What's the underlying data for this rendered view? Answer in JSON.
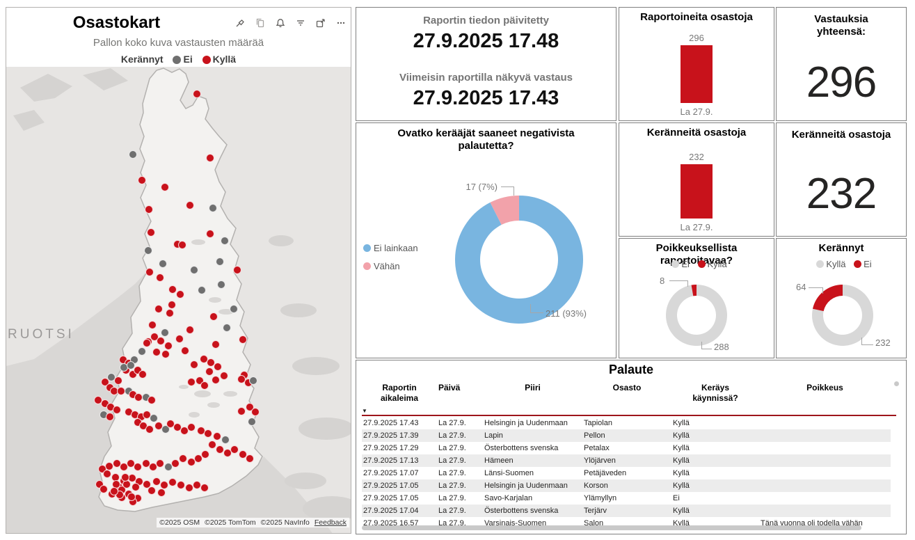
{
  "map_panel": {
    "title": "Osastokart",
    "subtitle": "Pallon koko kuva vastausten määrää",
    "legend_title": "Kerännyt",
    "legend": [
      {
        "label": "Ei",
        "color": "#6f6f6f"
      },
      {
        "label": "Kyllä",
        "color": "#c8121b"
      }
    ],
    "header_icons": [
      "pin-icon",
      "copy-icon",
      "bell-icon",
      "filter-icon",
      "focus-mode-icon",
      "more-options-icon"
    ],
    "region_label": "RUOTSI",
    "attribution": [
      "©2025 OSM",
      "©2025 TomTom",
      "©2025 NavInfo"
    ],
    "feedback_link": "Feedback",
    "dot_colors": {
      "r": "#c8121b",
      "g": "#6f6f6f"
    },
    "dots": [
      [
        274,
        39,
        "r"
      ],
      [
        182,
        126,
        "g"
      ],
      [
        293,
        131,
        "r"
      ],
      [
        195,
        163,
        "r"
      ],
      [
        228,
        173,
        "r"
      ],
      [
        264,
        199,
        "r"
      ],
      [
        297,
        203,
        "g"
      ],
      [
        205,
        205,
        "r"
      ],
      [
        208,
        238,
        "r"
      ],
      [
        293,
        240,
        "r"
      ],
      [
        314,
        250,
        "g"
      ],
      [
        246,
        255,
        "r"
      ],
      [
        253,
        256,
        "r"
      ],
      [
        204,
        264,
        "g"
      ],
      [
        307,
        280,
        "g"
      ],
      [
        225,
        283,
        "g"
      ],
      [
        270,
        292,
        "g"
      ],
      [
        332,
        292,
        "r"
      ],
      [
        206,
        295,
        "r"
      ],
      [
        221,
        303,
        "r"
      ],
      [
        309,
        313,
        "g"
      ],
      [
        281,
        321,
        "g"
      ],
      [
        239,
        320,
        "r"
      ],
      [
        250,
        327,
        "r"
      ],
      [
        238,
        342,
        "r"
      ],
      [
        219,
        348,
        "r"
      ],
      [
        235,
        354,
        "r"
      ],
      [
        327,
        348,
        "g"
      ],
      [
        317,
        375,
        "g"
      ],
      [
        210,
        371,
        "r"
      ],
      [
        228,
        382,
        "g"
      ],
      [
        213,
        388,
        "r"
      ],
      [
        222,
        394,
        "r"
      ],
      [
        249,
        391,
        "r"
      ],
      [
        233,
        401,
        "r"
      ],
      [
        257,
        408,
        "r"
      ],
      [
        216,
        410,
        "r"
      ],
      [
        229,
        413,
        "r"
      ],
      [
        195,
        409,
        "g"
      ],
      [
        204,
        395,
        "r"
      ],
      [
        340,
        392,
        "r"
      ],
      [
        301,
        399,
        "r"
      ],
      [
        298,
        359,
        "r"
      ],
      [
        264,
        378,
        "r"
      ],
      [
        202,
        397,
        "r"
      ],
      [
        342,
        443,
        "r"
      ],
      [
        338,
        449,
        "r"
      ],
      [
        348,
        454,
        "r"
      ],
      [
        350,
        489,
        "r"
      ],
      [
        358,
        496,
        "r"
      ],
      [
        338,
        495,
        "r"
      ],
      [
        355,
        451,
        "g"
      ],
      [
        353,
        510,
        "g"
      ],
      [
        301,
        450,
        "r"
      ],
      [
        313,
        444,
        "r"
      ],
      [
        278,
        451,
        "r"
      ],
      [
        285,
        458,
        "r"
      ],
      [
        266,
        453,
        "r"
      ],
      [
        284,
        420,
        "r"
      ],
      [
        294,
        425,
        "r"
      ],
      [
        304,
        431,
        "r"
      ],
      [
        270,
        428,
        "r"
      ],
      [
        292,
        438,
        "r"
      ],
      [
        168,
        421,
        "r"
      ],
      [
        176,
        426,
        "r"
      ],
      [
        184,
        421,
        "g"
      ],
      [
        172,
        436,
        "r"
      ],
      [
        182,
        442,
        "r"
      ],
      [
        189,
        436,
        "r"
      ],
      [
        196,
        442,
        "r"
      ],
      [
        169,
        432,
        "g"
      ],
      [
        179,
        429,
        "g"
      ],
      [
        151,
        446,
        "g"
      ],
      [
        161,
        451,
        "r"
      ],
      [
        142,
        453,
        "r"
      ],
      [
        149,
        461,
        "r"
      ],
      [
        155,
        466,
        "r"
      ],
      [
        165,
        466,
        "r"
      ],
      [
        176,
        466,
        "g"
      ],
      [
        182,
        471,
        "r"
      ],
      [
        190,
        475,
        "r"
      ],
      [
        201,
        475,
        "g"
      ],
      [
        209,
        479,
        "r"
      ],
      [
        132,
        479,
        "r"
      ],
      [
        142,
        484,
        "r"
      ],
      [
        150,
        489,
        "r"
      ],
      [
        159,
        493,
        "r"
      ],
      [
        140,
        500,
        "g"
      ],
      [
        149,
        503,
        "r"
      ],
      [
        176,
        496,
        "r"
      ],
      [
        185,
        500,
        "r"
      ],
      [
        194,
        503,
        "r"
      ],
      [
        202,
        500,
        "r"
      ],
      [
        212,
        505,
        "g"
      ],
      [
        189,
        511,
        "r"
      ],
      [
        197,
        516,
        "r"
      ],
      [
        206,
        521,
        "r"
      ],
      [
        219,
        516,
        "r"
      ],
      [
        229,
        521,
        "g"
      ],
      [
        236,
        513,
        "r"
      ],
      [
        246,
        518,
        "r"
      ],
      [
        256,
        523,
        "r"
      ],
      [
        266,
        518,
        "r"
      ],
      [
        280,
        523,
        "r"
      ],
      [
        290,
        527,
        "r"
      ],
      [
        303,
        531,
        "r"
      ],
      [
        315,
        536,
        "g"
      ],
      [
        296,
        543,
        "r"
      ],
      [
        307,
        550,
        "r"
      ],
      [
        318,
        555,
        "r"
      ],
      [
        328,
        550,
        "r"
      ],
      [
        340,
        557,
        "r"
      ],
      [
        350,
        563,
        "r"
      ],
      [
        286,
        557,
        "r"
      ],
      [
        276,
        563,
        "r"
      ],
      [
        266,
        568,
        "r"
      ],
      [
        254,
        563,
        "r"
      ],
      [
        243,
        570,
        "r"
      ],
      [
        233,
        575,
        "g"
      ],
      [
        221,
        570,
        "r"
      ],
      [
        211,
        575,
        "r"
      ],
      [
        201,
        570,
        "r"
      ],
      [
        189,
        575,
        "r"
      ],
      [
        179,
        570,
        "r"
      ],
      [
        169,
        575,
        "r"
      ],
      [
        159,
        570,
        "r"
      ],
      [
        148,
        574,
        "r"
      ],
      [
        138,
        578,
        "r"
      ],
      [
        145,
        585,
        "r"
      ],
      [
        157,
        590,
        "r"
      ],
      [
        169,
        595,
        "r"
      ],
      [
        181,
        591,
        "r"
      ],
      [
        191,
        596,
        "r"
      ],
      [
        202,
        600,
        "r"
      ],
      [
        216,
        596,
        "r"
      ],
      [
        227,
        601,
        "r"
      ],
      [
        239,
        597,
        "r"
      ],
      [
        251,
        601,
        "r"
      ],
      [
        263,
        605,
        "r"
      ],
      [
        274,
        601,
        "r"
      ],
      [
        285,
        605,
        "r"
      ],
      [
        162,
        604,
        "r"
      ],
      [
        176,
        614,
        "r"
      ],
      [
        189,
        620,
        "r"
      ],
      [
        209,
        609,
        "r"
      ],
      [
        223,
        612,
        "r"
      ],
      [
        134,
        600,
        "r"
      ],
      [
        140,
        607,
        "r"
      ],
      [
        152,
        614,
        "r"
      ],
      [
        166,
        619,
        "r"
      ],
      [
        182,
        625,
        "r"
      ],
      [
        158,
        600,
        "r"
      ],
      [
        166,
        608,
        "r"
      ],
      [
        173,
        600,
        "r"
      ],
      [
        180,
        618,
        "r"
      ],
      [
        171,
        590,
        "r"
      ],
      [
        163,
        615,
        "r"
      ],
      [
        155,
        610,
        "r"
      ],
      [
        186,
        604,
        "r"
      ]
    ]
  },
  "update_card": {
    "line1_label": "Raportin tiedon päivitetty",
    "line1_value": "27.9.2025 17.48",
    "line2_label": "Viimeisin raportilla näkyvä vastaus",
    "line2_value": "27.9.2025 17.43"
  },
  "chart_data": [
    {
      "id": "reported-departments-bar",
      "type": "bar",
      "title": "Raportoineita osastoja",
      "categories": [
        "La 27.9."
      ],
      "values": [
        296
      ],
      "ylim": [
        0,
        300
      ],
      "bar_color": "#c8121b"
    },
    {
      "id": "total-responses-card",
      "type": "number",
      "title": "Vastauksia yhteensä:",
      "value": 296
    },
    {
      "id": "collected-departments-bar",
      "type": "bar",
      "title": "Keränneitä osastoja",
      "categories": [
        "La 27.9."
      ],
      "values": [
        232
      ],
      "ylim": [
        0,
        250
      ],
      "bar_color": "#c8121b"
    },
    {
      "id": "collected-departments-card",
      "type": "number",
      "title": "Keränneitä osastoja",
      "value": 232
    },
    {
      "id": "negative-feedback-donut",
      "type": "pie",
      "title": "Ovatko kerääjät saaneet negativista palautetta?",
      "slices": [
        {
          "label": "Ei lainkaan",
          "value": 211,
          "color": "#79b5e0"
        },
        {
          "label": "Vähän",
          "value": 17,
          "color": "#f2a2aa"
        }
      ],
      "callout_small": "17 (7%)",
      "callout_large": "211 (93%)",
      "legend_position": "left"
    },
    {
      "id": "exceptional-report-donut",
      "type": "pie",
      "title": "Poikkeuksellista raportoitavaa?",
      "slices": [
        {
          "label": "Ei",
          "value": 288,
          "color": "#d8d8d8"
        },
        {
          "label": "Kyllä",
          "value": 8,
          "color": "#c8121b"
        }
      ],
      "callout_small": "8",
      "callout_large": "288",
      "legend_position": "top"
    },
    {
      "id": "collected-donut",
      "type": "pie",
      "title": "Kerännyt",
      "slices": [
        {
          "label": "Kyllä",
          "value": 232,
          "color": "#d8d8d8"
        },
        {
          "label": "Ei",
          "value": 64,
          "color": "#c8121b"
        }
      ],
      "callout_small": "64",
      "callout_large": "232",
      "legend_position": "top"
    }
  ],
  "table": {
    "title": "Palaute",
    "sort_indicator": "▼",
    "columns": [
      "Raportin\naikaleima",
      "Päivä",
      "Piiri",
      "Osasto",
      "Keräys\nkäynnissä?",
      "Poikkeus"
    ],
    "rows": [
      [
        "27.9.2025 17.43",
        "La 27.9.",
        "Helsingin ja Uudenmaan",
        "Tapiolan",
        "Kyllä",
        ""
      ],
      [
        "27.9.2025 17.39",
        "La 27.9.",
        "Lapin",
        "Pellon",
        "Kyllä",
        ""
      ],
      [
        "27.9.2025 17.29",
        "La 27.9.",
        "Österbottens svenska",
        "Petalax",
        "Kyllä",
        ""
      ],
      [
        "27.9.2025 17.13",
        "La 27.9.",
        "Hämeen",
        "Ylöjärven",
        "Kyllä",
        ""
      ],
      [
        "27.9.2025 17.07",
        "La 27.9.",
        "Länsi-Suomen",
        "Petäjäveden",
        "Kyllä",
        ""
      ],
      [
        "27.9.2025 17.05",
        "La 27.9.",
        "Helsingin ja Uudenmaan",
        "Korson",
        "Kyllä",
        ""
      ],
      [
        "27.9.2025 17.05",
        "La 27.9.",
        "Savo-Karjalan",
        "Ylämyllyn",
        "Ei",
        ""
      ],
      [
        "27.9.2025 17.04",
        "La 27.9.",
        "Österbottens svenska",
        "Terjärv",
        "Kyllä",
        ""
      ],
      [
        "27.9.2025 16.57",
        "La 27.9.",
        "Varsinais-Suomen",
        "Salon",
        "Kyllä",
        "Tänä vuonna oli todella vähän lipaskerääjiä"
      ]
    ]
  }
}
